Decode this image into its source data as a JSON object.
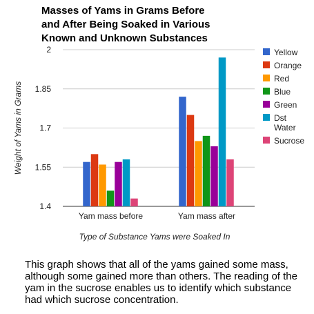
{
  "chart_data": {
    "type": "bar",
    "title_lines": [
      "Masses of Yams in Grams Before",
      "and After Being Soaked in Various",
      "Known and Unknown Substances"
    ],
    "xlabel": "Type of Substance Yams were Soaked In",
    "ylabel": "Weight of Yams in Grams",
    "categories": [
      "Yam mass before",
      "Yam mass after"
    ],
    "ylim": [
      1.4,
      2.0
    ],
    "yticks": [
      "1.4",
      "1.55",
      "1.7",
      "1.85",
      "2"
    ],
    "grid": true,
    "legend_position": "right",
    "series": [
      {
        "name": "Yellow",
        "color": "#3366cc",
        "values": [
          1.57,
          1.82
        ]
      },
      {
        "name": "Orange",
        "color": "#dc3912",
        "values": [
          1.6,
          1.75
        ]
      },
      {
        "name": "Red",
        "color": "#ff9900",
        "values": [
          1.56,
          1.65
        ]
      },
      {
        "name": "Blue",
        "color": "#109618",
        "values": [
          1.46,
          1.67
        ]
      },
      {
        "name": "Green",
        "color": "#990099",
        "values": [
          1.57,
          1.63
        ]
      },
      {
        "name": "Dst Water",
        "color": "#0099c6",
        "values": [
          1.58,
          1.97
        ]
      },
      {
        "name": "Sucrose",
        "color": "#dd4477",
        "values": [
          1.43,
          1.58
        ]
      }
    ]
  },
  "caption": "This graph shows that all of the yams gained some mass, although some gained more than others. The reading of the yam in the sucrose enables us to identify which substance had which sucrose concentration."
}
